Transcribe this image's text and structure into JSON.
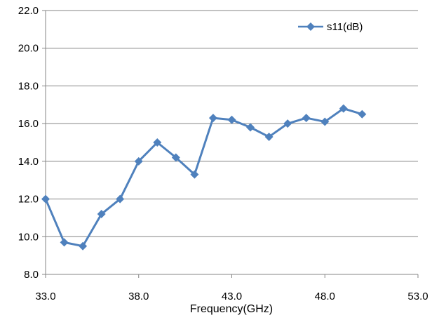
{
  "chart_data": {
    "type": "line",
    "title": "",
    "xlabel": "Frequency(GHz)",
    "ylabel": "",
    "xlim": [
      33.0,
      53.0
    ],
    "ylim": [
      8.0,
      22.0
    ],
    "x_ticks": [
      "33.0",
      "38.0",
      "43.0",
      "48.0",
      "53.0"
    ],
    "y_ticks": [
      "8.0",
      "10.0",
      "12.0",
      "14.0",
      "16.0",
      "18.0",
      "20.0",
      "22.0"
    ],
    "grid": "horizontal",
    "legend_position": "top-right",
    "series": [
      {
        "name": "s11(dB)",
        "color": "#4f81bd",
        "marker": "diamond",
        "x": [
          33,
          34,
          35,
          36,
          37,
          38,
          39,
          40,
          41,
          42,
          43,
          44,
          45,
          46,
          47,
          48,
          49,
          50
        ],
        "y": [
          12.0,
          9.7,
          9.5,
          11.2,
          12.0,
          14.0,
          15.0,
          14.2,
          13.3,
          16.3,
          16.2,
          15.8,
          15.3,
          16.0,
          16.3,
          16.1,
          16.8,
          16.5
        ]
      }
    ]
  }
}
